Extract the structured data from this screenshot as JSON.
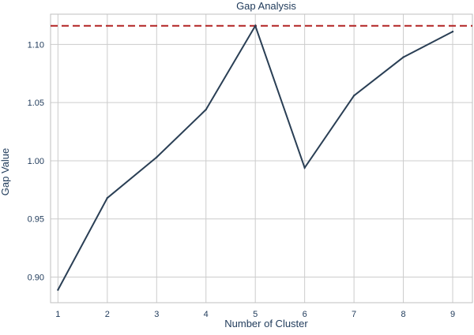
{
  "chart_data": {
    "type": "line",
    "title": "Gap Analysis",
    "xlabel": "Number of Cluster",
    "ylabel": "Gap Value",
    "x": [
      1,
      2,
      3,
      4,
      5,
      6,
      7,
      8,
      9
    ],
    "series": [
      {
        "name": "",
        "values": [
          0.889,
          0.968,
          1.003,
          1.044,
          1.116,
          0.994,
          1.056,
          1.089,
          1.111
        ]
      }
    ],
    "reference_line": {
      "orientation": "horizontal",
      "value": 1.116,
      "style": "dashed"
    },
    "xlim": [
      0.85,
      9.4
    ],
    "ylim": [
      0.878,
      1.126
    ],
    "xticks": [
      "1",
      "2",
      "3",
      "4",
      "5",
      "6",
      "7",
      "8",
      "9"
    ],
    "yticks": [
      "0.90",
      "0.95",
      "1.00",
      "1.05",
      "1.10"
    ],
    "grid": true,
    "colors": {
      "line": "#2a3f55",
      "reference": "#b22222",
      "grid": "#cccccc",
      "axis": "#bfbfbf",
      "text": "#1f3a5a"
    }
  }
}
